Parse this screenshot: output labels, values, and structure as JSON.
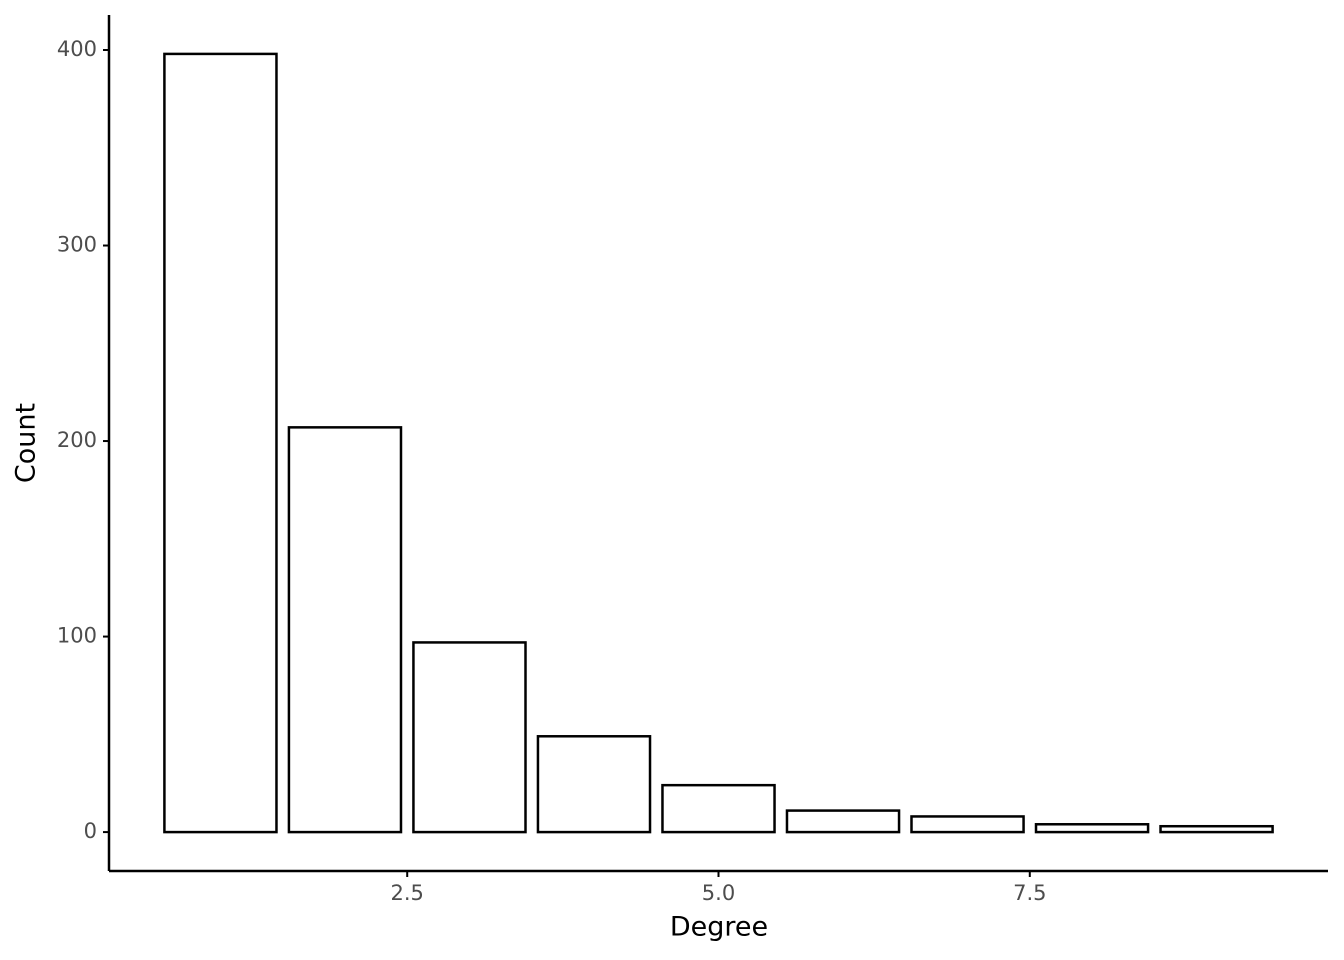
{
  "chart_data": {
    "type": "bar",
    "x_label": "Degree",
    "y_label": "Count",
    "x": [
      1,
      2,
      3,
      4,
      5,
      6,
      7,
      8,
      9
    ],
    "values": [
      398,
      207,
      97,
      49,
      24,
      11,
      8,
      4,
      3
    ],
    "color": "#ffffff",
    "edgecolor": "#000000",
    "xlim": [
      0.105,
      9.895
    ],
    "xticks": [
      2.5,
      {
        "value": 5,
        "label": "5.0"
      },
      7.5
    ],
    "ylim": [
      -19.9,
      417.9
    ],
    "yticks": [
      0,
      100,
      200,
      300,
      400
    ],
    "grid": false
  }
}
